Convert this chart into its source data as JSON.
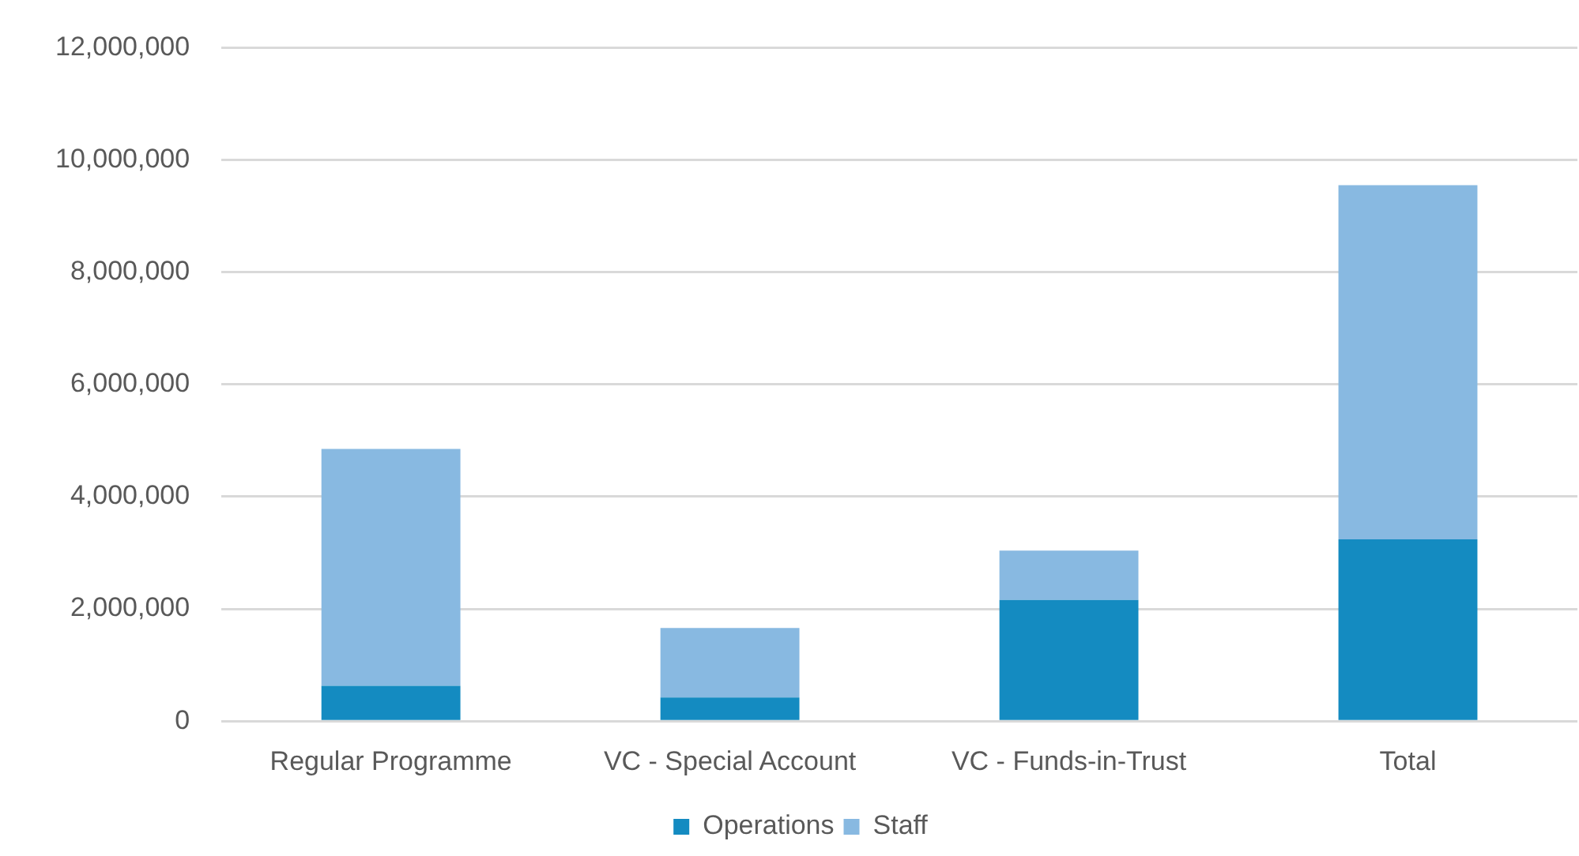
{
  "chart_data": {
    "type": "bar",
    "stacked": true,
    "categories": [
      "Regular Programme",
      "VC - Special Account",
      "VC - Funds-in-Trust",
      "Total"
    ],
    "series": [
      {
        "name": "Operations",
        "color": "#148bc1",
        "values": [
          630000,
          420000,
          2160000,
          3240000
        ]
      },
      {
        "name": "Staff",
        "color": "#88b9e1",
        "values": [
          4220000,
          1240000,
          880000,
          6310000
        ]
      }
    ],
    "ylim": [
      0,
      12000000
    ],
    "yticks": [
      {
        "value": 0,
        "label": "0"
      },
      {
        "value": 2000000,
        "label": "2,000,000"
      },
      {
        "value": 4000000,
        "label": "4,000,000"
      },
      {
        "value": 6000000,
        "label": "6,000,000"
      },
      {
        "value": 8000000,
        "label": "8,000,000"
      },
      {
        "value": 10000000,
        "label": "10,000,000"
      },
      {
        "value": 12000000,
        "label": "12,000,000"
      }
    ],
    "grid": "y",
    "legend": "bottom"
  }
}
